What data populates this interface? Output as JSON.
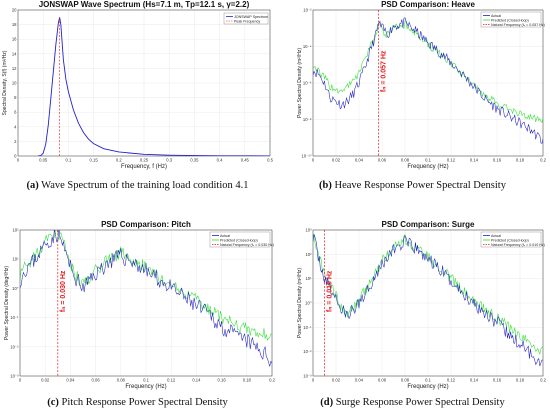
{
  "captions": [
    {
      "tag": "(a)",
      "text": " Wave Spectrum of the training load condition 4.1"
    },
    {
      "tag": "(b)",
      "text": " Heave Response Power Spectral Density"
    },
    {
      "tag": "(c)",
      "text": " Pitch Response Power Spectral Density"
    },
    {
      "tag": "(d)",
      "text": " Surge Response Power Spectral Density"
    }
  ],
  "colors": {
    "actual": "#1f1fbf",
    "predicted": "#33dd33",
    "natural": "#e41a1c",
    "spectrum": "#2121cc"
  },
  "chart_data": [
    {
      "type": "line",
      "title": "JONSWAP Wave Spectrum (Hs=7.1 m, Tp=12.1 s, γ=2.2)",
      "xlabel": "Frequency, f (Hz)",
      "ylabel": "Spectral Density, S(f) (m²/Hz)",
      "xlim": [
        0,
        0.5
      ],
      "ylim": [
        0,
        20
      ],
      "xticks": [
        "0",
        "0.05",
        "0.1",
        "0.15",
        "0.2",
        "0.25",
        "0.3",
        "0.35",
        "0.4",
        "0.45",
        "0.5"
      ],
      "yticks": [
        "0",
        "2",
        "4",
        "6",
        "8",
        "10",
        "12",
        "14",
        "16",
        "18",
        "20"
      ],
      "grid": true,
      "legend": "top-right",
      "peak_frequency": 0.0826,
      "series": [
        {
          "name": "JONSWAP Spectrum",
          "x": [
            0.04,
            0.045,
            0.05,
            0.055,
            0.06,
            0.065,
            0.07,
            0.075,
            0.08,
            0.0826,
            0.085,
            0.09,
            0.095,
            0.1,
            0.11,
            0.12,
            0.13,
            0.14,
            0.15,
            0.17,
            0.2,
            0.25,
            0.3,
            0.35,
            0.4,
            0.45,
            0.5
          ],
          "y": [
            0,
            0.05,
            0.4,
            1.6,
            4.2,
            7.8,
            11.5,
            15.2,
            18.2,
            19.0,
            18.0,
            13.2,
            10.5,
            8.8,
            6.3,
            4.5,
            3.2,
            2.3,
            1.7,
            1.0,
            0.55,
            0.23,
            0.11,
            0.06,
            0.03,
            0.02,
            0.01
          ]
        },
        {
          "name": "Peak Frequency",
          "x": [
            0.0826,
            0.0826
          ],
          "y": [
            0,
            19
          ]
        }
      ]
    },
    {
      "type": "line",
      "title": "PSD Comparison: Heave",
      "xlabel": "Frequency (Hz)",
      "ylabel": "Power Spectral Density (m²/Hz)",
      "xlim": [
        0,
        0.2
      ],
      "ylim": [
        -10,
        -2
      ],
      "yscale": "log",
      "xticks": [
        "0",
        "0.02",
        "0.04",
        "0.06",
        "0.08",
        "0.1",
        "0.12",
        "0.14",
        "0.16",
        "0.18",
        "0.2"
      ],
      "yticks": [
        "10⁻¹⁰",
        "10⁻⁸",
        "10⁻⁶",
        "10⁻⁴",
        "10⁻²"
      ],
      "grid": true,
      "legend": "top-right",
      "natural_frequency": 0.057,
      "annotation": "fₙ = 0.057 Hz",
      "legend_labels": [
        "Actual",
        "Predicted (Closed-loop)",
        "Natural Frequency (fₙ = 0.057 Hz)"
      ],
      "series": [
        {
          "name": "Actual",
          "x": [
            0,
            0.005,
            0.01,
            0.015,
            0.02,
            0.025,
            0.03,
            0.035,
            0.04,
            0.045,
            0.05,
            0.055,
            0.057,
            0.06,
            0.065,
            0.07,
            0.08,
            0.09,
            0.1,
            0.11,
            0.12,
            0.13,
            0.14,
            0.15,
            0.16,
            0.17,
            0.18,
            0.19,
            0.2
          ],
          "y": [
            -5.3,
            -5.5,
            -6.0,
            -6.8,
            -7.0,
            -7.2,
            -7.0,
            -6.6,
            -6.0,
            -5.2,
            -4.2,
            -3.3,
            -2.7,
            -3.0,
            -3.3,
            -2.9,
            -2.7,
            -3.2,
            -3.8,
            -4.3,
            -4.9,
            -5.5,
            -6.2,
            -6.9,
            -7.4,
            -7.8,
            -8.2,
            -8.6,
            -9.2
          ]
        },
        {
          "name": "Predicted (Closed-loop)",
          "x": [
            0,
            0.005,
            0.01,
            0.015,
            0.02,
            0.025,
            0.03,
            0.035,
            0.04,
            0.045,
            0.05,
            0.055,
            0.057,
            0.06,
            0.065,
            0.07,
            0.08,
            0.09,
            0.1,
            0.11,
            0.12,
            0.13,
            0.14,
            0.15,
            0.16,
            0.17,
            0.18,
            0.19,
            0.2
          ],
          "y": [
            -5.0,
            -5.4,
            -5.7,
            -6.2,
            -6.4,
            -6.5,
            -6.2,
            -5.9,
            -5.4,
            -4.8,
            -4.0,
            -3.2,
            -2.8,
            -3.1,
            -3.4,
            -3.0,
            -2.8,
            -3.3,
            -3.9,
            -4.4,
            -5.0,
            -5.5,
            -6.1,
            -6.7,
            -7.1,
            -7.4,
            -7.7,
            -7.9,
            -8.1
          ]
        }
      ]
    },
    {
      "type": "line",
      "title": "PSD Comparison: Pitch",
      "xlabel": "Frequency (Hz)",
      "ylabel": "Power Spectral Density (deg²/Hz)",
      "xlim": [
        0,
        0.2
      ],
      "ylim": [
        -3,
        2
      ],
      "yscale": "log",
      "xticks": [
        "0",
        "0.02",
        "0.04",
        "0.06",
        "0.08",
        "0.1",
        "0.12",
        "0.14",
        "0.16",
        "0.18",
        "0.2"
      ],
      "yticks": [
        "10⁻³",
        "10⁻²",
        "10⁻¹",
        "10⁰",
        "10¹",
        "10²"
      ],
      "grid": true,
      "legend": "top-right",
      "natural_frequency": 0.03,
      "annotation": "fₙ = 0.030 Hz",
      "legend_labels": [
        "Actual",
        "Predicted (Closed-loop)",
        "Natural Frequency (fₙ = 0.030 Hz)"
      ],
      "series": [
        {
          "name": "Actual",
          "x": [
            0,
            0.005,
            0.01,
            0.015,
            0.02,
            0.025,
            0.03,
            0.035,
            0.04,
            0.045,
            0.05,
            0.06,
            0.07,
            0.08,
            0.09,
            0.1,
            0.11,
            0.12,
            0.13,
            0.14,
            0.15,
            0.16,
            0.17,
            0.18,
            0.19,
            0.2
          ],
          "y": [
            0.3,
            0.7,
            0.9,
            1.2,
            1.5,
            1.7,
            1.9,
            1.4,
            0.7,
            0.3,
            0.0,
            0.5,
            0.9,
            1.1,
            0.9,
            0.6,
            0.3,
            0.0,
            -0.3,
            -0.6,
            -0.9,
            -1.3,
            -1.6,
            -1.8,
            -2.1,
            -2.5
          ]
        },
        {
          "name": "Predicted (Closed-loop)",
          "x": [
            0,
            0.005,
            0.01,
            0.015,
            0.02,
            0.025,
            0.03,
            0.035,
            0.04,
            0.045,
            0.05,
            0.06,
            0.07,
            0.08,
            0.09,
            0.1,
            0.11,
            0.12,
            0.13,
            0.14,
            0.15,
            0.16,
            0.17,
            0.18,
            0.19,
            0.2
          ],
          "y": [
            0.4,
            0.8,
            1.0,
            1.3,
            1.6,
            1.8,
            1.9,
            1.5,
            0.8,
            0.4,
            0.1,
            0.6,
            1.0,
            1.2,
            1.0,
            0.7,
            0.4,
            0.1,
            -0.2,
            -0.4,
            -0.7,
            -1.0,
            -1.2,
            -1.4,
            -1.5,
            -1.6
          ]
        }
      ]
    },
    {
      "type": "line",
      "title": "PSD Comparison: Surge",
      "xlabel": "Frequency (Hz)",
      "ylabel": "Power Spectral Density (m²/Hz)",
      "xlim": [
        0,
        0.2
      ],
      "ylim": [
        -3,
        3
      ],
      "yscale": "log",
      "xticks": [
        "0",
        "0.02",
        "0.04",
        "0.06",
        "0.08",
        "0.1",
        "0.12",
        "0.14",
        "0.16",
        "0.18",
        "0.2"
      ],
      "yticks": [
        "10⁻³",
        "10⁻²",
        "10⁻¹",
        "10⁰",
        "10¹",
        "10²",
        "10³"
      ],
      "grid": true,
      "legend": "top-right",
      "natural_frequency": 0.01,
      "annotation": "fₙ = 0.010 Hz",
      "legend_labels": [
        "Actual",
        "Predicted (Closed-loop)",
        "Natural Frequency (fₙ = 0.010 Hz)"
      ],
      "series": [
        {
          "name": "Actual",
          "x": [
            0,
            0.003,
            0.006,
            0.01,
            0.015,
            0.02,
            0.025,
            0.03,
            0.035,
            0.04,
            0.05,
            0.06,
            0.07,
            0.08,
            0.09,
            0.1,
            0.11,
            0.12,
            0.13,
            0.14,
            0.15,
            0.16,
            0.17,
            0.18,
            0.19,
            0.2
          ],
          "y": [
            2.8,
            2.2,
            1.7,
            1.0,
            0.6,
            0.2,
            -0.3,
            -0.5,
            -0.3,
            0.0,
            0.8,
            1.6,
            2.2,
            2.5,
            2.2,
            1.8,
            1.4,
            0.9,
            0.4,
            0.0,
            -0.4,
            -0.8,
            -1.3,
            -1.7,
            -2.1,
            -2.5
          ]
        },
        {
          "name": "Predicted (Closed-loop)",
          "x": [
            0,
            0.003,
            0.006,
            0.01,
            0.015,
            0.02,
            0.025,
            0.03,
            0.035,
            0.04,
            0.05,
            0.06,
            0.07,
            0.08,
            0.09,
            0.1,
            0.11,
            0.12,
            0.13,
            0.14,
            0.15,
            0.16,
            0.17,
            0.18,
            0.19,
            0.2
          ],
          "y": [
            2.9,
            2.3,
            1.8,
            1.1,
            0.7,
            0.3,
            -0.2,
            -0.4,
            -0.2,
            0.1,
            0.9,
            1.7,
            2.3,
            2.6,
            2.3,
            1.9,
            1.5,
            1.0,
            0.5,
            0.1,
            -0.3,
            -0.6,
            -1.0,
            -1.4,
            -1.7,
            -2.0
          ]
        }
      ]
    }
  ]
}
